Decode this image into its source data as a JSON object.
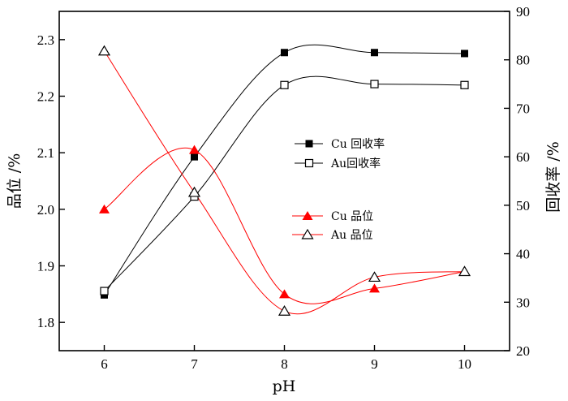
{
  "chart_data": {
    "type": "line",
    "title": "",
    "xlabel": "pH",
    "ylabel_left": "品位 /%",
    "ylabel_right": "回收率 /%",
    "x": [
      6,
      7,
      8,
      9,
      10
    ],
    "xlim": [
      5.5,
      10.5
    ],
    "ylim_left": [
      1.75,
      2.35
    ],
    "ylim_right": [
      20,
      90
    ],
    "xticks": [
      "6",
      "7",
      "8",
      "9",
      "10"
    ],
    "yticks_left": [
      "1.8",
      "1.9",
      "2.0",
      "2.1",
      "2.2",
      "2.3"
    ],
    "yticks_right": [
      "20",
      "30",
      "40",
      "50",
      "60",
      "70",
      "80",
      "90"
    ],
    "grid": false,
    "legend_position": "center-right",
    "series": [
      {
        "name": "Cu 回收率",
        "axis": "right",
        "marker": "filled-square",
        "color": "#000000",
        "values": [
          31.5,
          60.0,
          81.5,
          81.5,
          81.3
        ]
      },
      {
        "name": "Au回收率",
        "axis": "right",
        "marker": "open-square",
        "color": "#000000",
        "values": [
          32.3,
          51.8,
          74.8,
          75.0,
          74.8
        ]
      },
      {
        "name": "Cu 品位",
        "axis": "left",
        "marker": "filled-triangle",
        "color": "#ff0000",
        "values": [
          2.0,
          2.105,
          1.85,
          1.86,
          1.89
        ]
      },
      {
        "name": "Au 品位",
        "axis": "left",
        "marker": "open-triangle",
        "color": "#ff0000",
        "values": [
          2.28,
          2.03,
          1.82,
          1.88,
          1.89
        ]
      }
    ]
  }
}
